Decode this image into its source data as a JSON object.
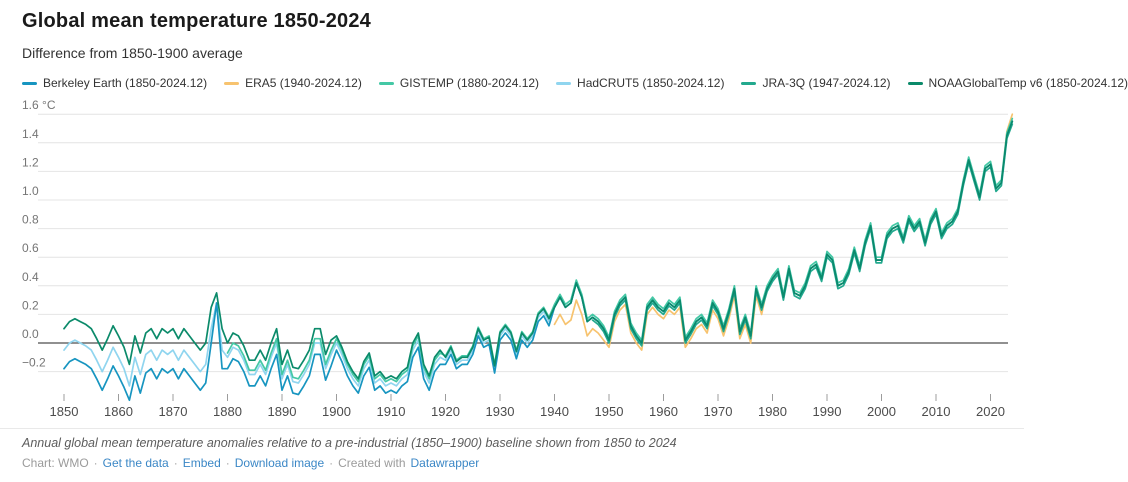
{
  "header": {
    "title": "Global mean temperature 1850-2024",
    "subtitle": "Difference from 1850-1900 average"
  },
  "footer": {
    "note": "Annual global mean temperature anomalies relative to a pre-industrial (1850–1900) baseline shown from 1850 to 2024",
    "credit": [
      {
        "kind": "text",
        "text": "Chart: WMO",
        "name": "credit-source"
      },
      {
        "kind": "sep",
        "text": "·",
        "name": "credit-separator"
      },
      {
        "kind": "link",
        "text": "Get the data",
        "name": "get-the-data-link"
      },
      {
        "kind": "sep",
        "text": "·",
        "name": "credit-separator"
      },
      {
        "kind": "link",
        "text": "Embed",
        "name": "embed-link"
      },
      {
        "kind": "sep",
        "text": "·",
        "name": "credit-separator"
      },
      {
        "kind": "link",
        "text": "Download image",
        "name": "download-image-link"
      },
      {
        "kind": "sep",
        "text": "·",
        "name": "credit-separator"
      },
      {
        "kind": "text",
        "text": "Created with",
        "name": "created-with-text"
      },
      {
        "kind": "link",
        "text": "Datawrapper",
        "name": "datawrapper-link"
      }
    ]
  },
  "chart_data": {
    "type": "line",
    "title": "Global mean temperature 1850-2024",
    "subtitle": "Difference from 1850-1900 average",
    "xlabel": "",
    "ylabel": "°C",
    "x_range": [
      1850,
      2024
    ],
    "ylim": [
      -0.45,
      1.65
    ],
    "grid": "horizontal",
    "legend_position": "top",
    "y_ticks": [
      {
        "value": 1.6,
        "label": "1.6 °C"
      },
      {
        "value": 1.4,
        "label": "1.4"
      },
      {
        "value": 1.2,
        "label": "1.2"
      },
      {
        "value": 1.0,
        "label": "1.0"
      },
      {
        "value": 0.8,
        "label": "0.8"
      },
      {
        "value": 0.6,
        "label": "0.6"
      },
      {
        "value": 0.4,
        "label": "0.4"
      },
      {
        "value": 0.2,
        "label": "0.2"
      },
      {
        "value": 0.0,
        "label": "0.0"
      },
      {
        "value": -0.2,
        "label": "−0.2"
      }
    ],
    "x_ticks": [
      1850,
      1860,
      1870,
      1880,
      1890,
      1900,
      1910,
      1920,
      1930,
      1940,
      1950,
      1960,
      1970,
      1980,
      1990,
      2000,
      2010,
      2020
    ],
    "series": [
      {
        "id": "berkeley-earth",
        "label": "Berkeley Earth (1850-2024.12)",
        "color": "#1795c0",
        "start_year": 1850,
        "values": [
          -0.18,
          -0.13,
          -0.11,
          -0.13,
          -0.15,
          -0.18,
          -0.25,
          -0.33,
          -0.25,
          -0.16,
          -0.23,
          -0.31,
          -0.4,
          -0.23,
          -0.35,
          -0.21,
          -0.18,
          -0.25,
          -0.18,
          -0.21,
          -0.18,
          -0.25,
          -0.18,
          -0.23,
          -0.28,
          -0.33,
          -0.28,
          0.0,
          0.28,
          -0.18,
          -0.18,
          -0.11,
          -0.13,
          -0.2,
          -0.3,
          -0.3,
          -0.23,
          -0.3,
          -0.18,
          -0.08,
          -0.33,
          -0.23,
          -0.35,
          -0.36,
          -0.3,
          -0.23,
          -0.08,
          -0.08,
          -0.26,
          -0.16,
          -0.05,
          -0.13,
          -0.23,
          -0.3,
          -0.35,
          -0.23,
          -0.17,
          -0.33,
          -0.3,
          -0.35,
          -0.33,
          -0.35,
          -0.3,
          -0.27,
          -0.1,
          -0.03,
          -0.25,
          -0.33,
          -0.2,
          -0.15,
          -0.15,
          -0.08,
          -0.18,
          -0.15,
          -0.15,
          -0.08,
          0.05,
          -0.03,
          -0.01,
          -0.21,
          0.02,
          0.07,
          0.02,
          -0.11,
          0.02,
          -0.03,
          0.02,
          0.15,
          0.19,
          0.12,
          0.25,
          0.32,
          0.25,
          0.28,
          0.42,
          0.32,
          0.15,
          0.18,
          0.15,
          0.1,
          0.02,
          0.2,
          0.28,
          0.32,
          0.12,
          0.05,
          0.0,
          0.25,
          0.3,
          0.25,
          0.22,
          0.28,
          0.25,
          0.3,
          0.02,
          0.08,
          0.15,
          0.18,
          0.12,
          0.28,
          0.22,
          0.1,
          0.22,
          0.38,
          0.08,
          0.18,
          0.05,
          0.38,
          0.25,
          0.38,
          0.45,
          0.5,
          0.32,
          0.52,
          0.35,
          0.33,
          0.4,
          0.52,
          0.55,
          0.45,
          0.62,
          0.58,
          0.4,
          0.42,
          0.5,
          0.65,
          0.52,
          0.7,
          0.82,
          0.58,
          0.58,
          0.75,
          0.8,
          0.82,
          0.72,
          0.87,
          0.8,
          0.85,
          0.7,
          0.85,
          0.92,
          0.75,
          0.82,
          0.85,
          0.92,
          1.12,
          1.28,
          1.15,
          1.02,
          1.22,
          1.25,
          1.08,
          1.12,
          1.45,
          1.55
        ]
      },
      {
        "id": "era5",
        "label": "ERA5 (1940-2024.12)",
        "color": "#f7c36f",
        "start_year": 1940,
        "values": [
          0.13,
          0.2,
          0.13,
          0.16,
          0.3,
          0.2,
          0.05,
          0.1,
          0.07,
          0.02,
          -0.03,
          0.15,
          0.23,
          0.27,
          0.07,
          0.0,
          -0.05,
          0.2,
          0.25,
          0.2,
          0.17,
          0.23,
          0.2,
          0.25,
          -0.03,
          0.03,
          0.1,
          0.13,
          0.07,
          0.23,
          0.17,
          0.05,
          0.17,
          0.33,
          0.03,
          0.13,
          0.0,
          0.33,
          0.2,
          0.38,
          0.45,
          0.5,
          0.32,
          0.52,
          0.35,
          0.33,
          0.4,
          0.52,
          0.55,
          0.45,
          0.62,
          0.58,
          0.4,
          0.42,
          0.5,
          0.65,
          0.52,
          0.7,
          0.82,
          0.58,
          0.58,
          0.75,
          0.8,
          0.82,
          0.72,
          0.87,
          0.8,
          0.85,
          0.7,
          0.85,
          0.92,
          0.75,
          0.82,
          0.85,
          0.92,
          1.12,
          1.28,
          1.15,
          1.02,
          1.22,
          1.25,
          1.08,
          1.12,
          1.48,
          1.6
        ]
      },
      {
        "id": "gistemp",
        "label": "GISTEMP (1880-2024.12)",
        "color": "#44c8a5",
        "start_year": 1880,
        "values": [
          -0.07,
          0.0,
          -0.02,
          -0.09,
          -0.19,
          -0.19,
          -0.12,
          -0.19,
          -0.07,
          0.03,
          -0.22,
          -0.12,
          -0.24,
          -0.25,
          -0.19,
          -0.12,
          0.03,
          0.03,
          -0.15,
          -0.05,
          0.03,
          -0.05,
          -0.15,
          -0.22,
          -0.27,
          -0.15,
          -0.09,
          -0.25,
          -0.22,
          -0.27,
          -0.25,
          -0.27,
          -0.22,
          -0.19,
          -0.02,
          0.05,
          -0.17,
          -0.25,
          -0.12,
          -0.07,
          -0.09,
          -0.02,
          -0.12,
          -0.09,
          -0.09,
          -0.02,
          0.11,
          0.03,
          0.05,
          -0.15,
          0.08,
          0.13,
          0.08,
          -0.05,
          0.08,
          0.03,
          0.08,
          0.21,
          0.25,
          0.18,
          0.27,
          0.34,
          0.27,
          0.3,
          0.44,
          0.34,
          0.17,
          0.2,
          0.17,
          0.12,
          0.04,
          0.22,
          0.3,
          0.34,
          0.14,
          0.07,
          0.02,
          0.27,
          0.32,
          0.27,
          0.24,
          0.3,
          0.27,
          0.32,
          0.04,
          0.1,
          0.17,
          0.2,
          0.14,
          0.3,
          0.24,
          0.12,
          0.24,
          0.4,
          0.1,
          0.2,
          0.07,
          0.4,
          0.27,
          0.4,
          0.47,
          0.52,
          0.34,
          0.54,
          0.37,
          0.35,
          0.42,
          0.54,
          0.57,
          0.47,
          0.64,
          0.6,
          0.42,
          0.44,
          0.52,
          0.67,
          0.54,
          0.72,
          0.84,
          0.6,
          0.6,
          0.77,
          0.82,
          0.84,
          0.74,
          0.89,
          0.82,
          0.87,
          0.72,
          0.87,
          0.94,
          0.77,
          0.84,
          0.87,
          0.94,
          1.14,
          1.3,
          1.17,
          1.04,
          1.24,
          1.27,
          1.1,
          1.14,
          1.47,
          1.57
        ]
      },
      {
        "id": "hadcrut5",
        "label": "HadCRUT5 (1850-2024.12)",
        "color": "#90d5ef",
        "start_year": 1850,
        "values": [
          -0.05,
          0.0,
          0.02,
          0.0,
          -0.02,
          -0.05,
          -0.12,
          -0.2,
          -0.12,
          -0.03,
          -0.1,
          -0.18,
          -0.3,
          -0.1,
          -0.22,
          -0.08,
          -0.05,
          -0.12,
          -0.05,
          -0.08,
          -0.05,
          -0.12,
          -0.05,
          -0.1,
          -0.15,
          -0.2,
          -0.15,
          0.1,
          0.28,
          -0.05,
          -0.1,
          -0.03,
          -0.05,
          -0.12,
          -0.22,
          -0.22,
          -0.15,
          -0.22,
          -0.1,
          0.0,
          -0.25,
          -0.15,
          -0.27,
          -0.28,
          -0.22,
          -0.15,
          0.0,
          0.0,
          -0.18,
          -0.08,
          0.0,
          -0.08,
          -0.18,
          -0.25,
          -0.3,
          -0.18,
          -0.12,
          -0.28,
          -0.25,
          -0.3,
          -0.28,
          -0.3,
          -0.25,
          -0.22,
          -0.05,
          0.02,
          -0.2,
          -0.28,
          -0.15,
          -0.1,
          -0.12,
          -0.05,
          -0.15,
          -0.12,
          -0.12,
          -0.05,
          0.08,
          0.0,
          0.02,
          -0.18,
          0.05,
          0.1,
          0.05,
          -0.08,
          0.05,
          0.0,
          0.05,
          0.18,
          0.22,
          0.15,
          0.25,
          0.32,
          0.25,
          0.28,
          0.42,
          0.32,
          0.15,
          0.18,
          0.15,
          0.1,
          0.02,
          0.2,
          0.28,
          0.32,
          0.12,
          0.05,
          0.0,
          0.25,
          0.3,
          0.25,
          0.22,
          0.28,
          0.25,
          0.3,
          0.02,
          0.08,
          0.15,
          0.18,
          0.12,
          0.28,
          0.22,
          0.1,
          0.22,
          0.38,
          0.08,
          0.18,
          0.05,
          0.38,
          0.25,
          0.38,
          0.45,
          0.5,
          0.32,
          0.52,
          0.35,
          0.33,
          0.4,
          0.52,
          0.55,
          0.45,
          0.62,
          0.58,
          0.4,
          0.42,
          0.5,
          0.65,
          0.52,
          0.7,
          0.82,
          0.58,
          0.58,
          0.75,
          0.8,
          0.82,
          0.72,
          0.87,
          0.8,
          0.85,
          0.7,
          0.85,
          0.92,
          0.75,
          0.82,
          0.85,
          0.92,
          1.12,
          1.28,
          1.15,
          1.02,
          1.22,
          1.25,
          1.08,
          1.12,
          1.45,
          1.55
        ]
      },
      {
        "id": "jra-3q",
        "label": "JRA-3Q (1947-2024.12)",
        "color": "#23a98e",
        "start_year": 1947,
        "values": [
          0.16,
          0.13,
          0.08,
          0.0,
          0.18,
          0.26,
          0.3,
          0.1,
          0.03,
          -0.02,
          0.23,
          0.28,
          0.23,
          0.2,
          0.26,
          0.23,
          0.28,
          0.0,
          0.06,
          0.13,
          0.16,
          0.1,
          0.26,
          0.2,
          0.08,
          0.2,
          0.36,
          0.06,
          0.16,
          0.03,
          0.36,
          0.23,
          0.36,
          0.43,
          0.48,
          0.3,
          0.5,
          0.33,
          0.31,
          0.38,
          0.5,
          0.53,
          0.43,
          0.6,
          0.56,
          0.38,
          0.4,
          0.48,
          0.63,
          0.5,
          0.68,
          0.8,
          0.56,
          0.56,
          0.73,
          0.78,
          0.8,
          0.7,
          0.85,
          0.78,
          0.83,
          0.68,
          0.83,
          0.9,
          0.73,
          0.8,
          0.83,
          0.9,
          1.1,
          1.26,
          1.13,
          1.0,
          1.2,
          1.23,
          1.06,
          1.1,
          1.43,
          1.53
        ]
      },
      {
        "id": "noaaglobaltemp-v6",
        "label": "NOAAGlobalTemp v6 (1850-2024.12)",
        "color": "#0b8a6a",
        "start_year": 1850,
        "values": [
          0.1,
          0.15,
          0.17,
          0.15,
          0.13,
          0.1,
          0.03,
          -0.05,
          0.03,
          0.12,
          0.05,
          -0.03,
          -0.15,
          0.05,
          -0.07,
          0.07,
          0.1,
          0.03,
          0.1,
          0.07,
          0.1,
          0.03,
          0.1,
          0.05,
          0.0,
          -0.05,
          0.0,
          0.25,
          0.35,
          0.1,
          0.0,
          0.07,
          0.05,
          -0.02,
          -0.12,
          -0.12,
          -0.05,
          -0.12,
          0.0,
          0.1,
          -0.15,
          -0.05,
          -0.17,
          -0.18,
          -0.12,
          -0.05,
          0.1,
          0.1,
          -0.08,
          0.02,
          0.05,
          -0.03,
          -0.13,
          -0.2,
          -0.25,
          -0.13,
          -0.07,
          -0.23,
          -0.2,
          -0.25,
          -0.23,
          -0.25,
          -0.2,
          -0.17,
          0.0,
          0.07,
          -0.15,
          -0.23,
          -0.1,
          -0.05,
          -0.1,
          -0.03,
          -0.13,
          -0.1,
          -0.1,
          -0.03,
          0.1,
          0.02,
          0.04,
          -0.16,
          0.07,
          0.12,
          0.07,
          -0.06,
          0.07,
          0.02,
          0.07,
          0.2,
          0.24,
          0.17,
          0.25,
          0.32,
          0.25,
          0.28,
          0.42,
          0.32,
          0.15,
          0.18,
          0.15,
          0.1,
          0.02,
          0.2,
          0.28,
          0.32,
          0.12,
          0.05,
          0.0,
          0.25,
          0.3,
          0.25,
          0.22,
          0.28,
          0.25,
          0.3,
          0.02,
          0.08,
          0.15,
          0.18,
          0.12,
          0.28,
          0.22,
          0.1,
          0.22,
          0.38,
          0.08,
          0.18,
          0.05,
          0.38,
          0.25,
          0.38,
          0.45,
          0.5,
          0.32,
          0.52,
          0.35,
          0.33,
          0.4,
          0.52,
          0.55,
          0.45,
          0.62,
          0.58,
          0.4,
          0.42,
          0.5,
          0.65,
          0.52,
          0.7,
          0.82,
          0.58,
          0.58,
          0.75,
          0.8,
          0.82,
          0.72,
          0.87,
          0.8,
          0.85,
          0.7,
          0.85,
          0.92,
          0.75,
          0.82,
          0.85,
          0.92,
          1.12,
          1.28,
          1.15,
          1.02,
          1.22,
          1.25,
          1.08,
          1.12,
          1.45,
          1.55
        ]
      }
    ]
  }
}
